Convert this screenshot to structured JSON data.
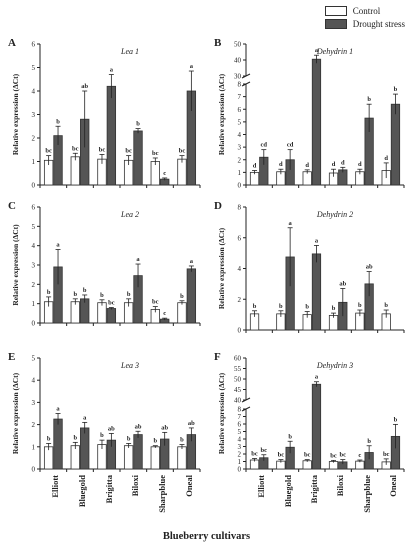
{
  "legend": {
    "control": "Control",
    "drought": "Drought stress"
  },
  "x_axis_title": "Blueberry cultivars",
  "colors": {
    "control": "#ffffff",
    "drought": "#555555",
    "axis": "#222222"
  },
  "chart_data": [
    {
      "panel": "A",
      "type": "bar",
      "title": "Lea 1",
      "ylabel": "Relative expression (ΔCt)",
      "categories": [
        "Elliott",
        "Bluegold",
        "Brigitta",
        "Biloxi",
        "Sharpblue",
        "Oneal"
      ],
      "ylim": [
        0,
        6
      ],
      "yticks": [
        0,
        1,
        2,
        3,
        4,
        5,
        6
      ],
      "series": [
        {
          "name": "Control",
          "values": [
            1.05,
            1.2,
            1.1,
            1.05,
            1.0,
            1.1
          ],
          "errors": [
            0.2,
            0.15,
            0.2,
            0.2,
            0.15,
            0.15
          ],
          "letters": [
            "bc",
            "bc",
            "bc",
            "bc",
            "bc",
            "bc"
          ]
        },
        {
          "name": "Drought stress",
          "values": [
            2.1,
            2.8,
            4.2,
            2.3,
            0.25,
            4.0
          ],
          "errors": [
            0.4,
            1.2,
            0.5,
            0.1,
            0.05,
            0.85
          ],
          "letters": [
            "b",
            "ab",
            "a",
            "b",
            "c",
            "a"
          ]
        }
      ]
    },
    {
      "panel": "B",
      "type": "bar",
      "title": "Dehydrin 1",
      "ylabel": "Relative expression (ΔCt)",
      "categories": [
        "Elliott",
        "Bluegold",
        "Brigitta",
        "Biloxi",
        "Sharpblue",
        "Oneal"
      ],
      "axis_break": true,
      "ylim_lower": [
        0,
        8
      ],
      "yticks_lower": [
        0,
        1,
        2,
        3,
        4,
        5,
        6,
        7,
        8
      ],
      "ylim_upper": [
        30,
        50
      ],
      "yticks_upper": [
        30,
        40,
        50
      ],
      "series": [
        {
          "name": "Control",
          "values": [
            1.0,
            1.05,
            1.05,
            0.95,
            1.05,
            1.15
          ],
          "errors": [
            0.15,
            0.2,
            0.15,
            0.3,
            0.2,
            0.6
          ],
          "letters": [
            "d",
            "d",
            "d",
            "d",
            "d",
            "d"
          ]
        },
        {
          "name": "Drought stress",
          "values": [
            2.2,
            2.0,
            40.5,
            1.2,
            5.3,
            6.4
          ],
          "errors": [
            0.6,
            0.8,
            2.5,
            0.2,
            1.1,
            0.8
          ],
          "letters": [
            "cd",
            "cd",
            "a",
            "d",
            "b",
            "b"
          ]
        }
      ]
    },
    {
      "panel": "C",
      "type": "bar",
      "title": "Lea 2",
      "ylabel": "Relative expression (ΔCt)",
      "categories": [
        "Elliott",
        "Bluegold",
        "Brigitta",
        "Biloxi",
        "Sharpblue",
        "Oneal"
      ],
      "ylim": [
        0,
        6
      ],
      "yticks": [
        0,
        1,
        2,
        3,
        4,
        5,
        6
      ],
      "series": [
        {
          "name": "Control",
          "values": [
            1.1,
            1.1,
            1.05,
            1.05,
            0.7,
            1.05
          ],
          "errors": [
            0.25,
            0.15,
            0.15,
            0.2,
            0.15,
            0.1
          ],
          "letters": [
            "b",
            "b",
            "b",
            "b",
            "bc",
            "b"
          ]
        },
        {
          "name": "Drought stress",
          "values": [
            2.9,
            1.25,
            0.75,
            2.45,
            0.2,
            2.8
          ],
          "errors": [
            0.9,
            0.2,
            0.05,
            0.6,
            0.05,
            0.15
          ],
          "letters": [
            "a",
            "b",
            "bc",
            "a",
            "c",
            "a"
          ]
        }
      ]
    },
    {
      "panel": "D",
      "type": "bar",
      "title": "Dehydrin 2",
      "ylabel": "Relative expression (ΔCt)",
      "categories": [
        "Elliott",
        "Bluegold",
        "Brigitta",
        "Biloxi",
        "Sharpblue",
        "Oneal"
      ],
      "ylim": [
        0,
        8
      ],
      "yticks": [
        0,
        2,
        4,
        6,
        8
      ],
      "series": [
        {
          "name": "Control",
          "values": [
            1.05,
            1.05,
            1.0,
            0.95,
            1.1,
            1.05
          ],
          "errors": [
            0.2,
            0.2,
            0.2,
            0.15,
            0.2,
            0.25
          ],
          "letters": [
            "b",
            "b",
            "b",
            "b",
            "b",
            "b"
          ]
        },
        {
          "name": "Drought stress",
          "values": [
            0,
            4.75,
            4.95,
            1.8,
            3.0,
            0
          ],
          "errors": [
            0,
            1.9,
            0.55,
            0.9,
            0.8,
            0
          ],
          "letters": [
            "",
            "a",
            "a",
            "ab",
            "ab",
            ""
          ]
        }
      ]
    },
    {
      "panel": "E",
      "type": "bar",
      "title": "Lea 3",
      "ylabel": "Relative expression (ΔCt)",
      "categories": [
        "Elliott",
        "Bluegold",
        "Brigitta",
        "Biloxi",
        "Sharpblue",
        "Oneal"
      ],
      "ylim": [
        0,
        5
      ],
      "yticks": [
        0,
        1,
        2,
        3,
        4,
        5
      ],
      "series": [
        {
          "name": "Control",
          "values": [
            1.0,
            1.05,
            1.1,
            1.05,
            1.0,
            1.0
          ],
          "errors": [
            0.15,
            0.15,
            0.2,
            0.1,
            0.05,
            0.1
          ],
          "letters": [
            "b",
            "b",
            "b",
            "b",
            "b",
            "b"
          ]
        },
        {
          "name": "Drought stress",
          "values": [
            2.25,
            1.85,
            1.3,
            1.55,
            1.35,
            1.55
          ],
          "errors": [
            0.25,
            0.25,
            0.3,
            0.15,
            0.3,
            0.3
          ],
          "letters": [
            "a",
            "a",
            "ab",
            "ab",
            "ab",
            "ab"
          ]
        }
      ]
    },
    {
      "panel": "F",
      "type": "bar",
      "title": "Dehydrin 3",
      "ylabel": "Relative expression (ΔCt)",
      "categories": [
        "Elliott",
        "Bluegold",
        "Brigitta",
        "Biloxi",
        "Sharpblue",
        "Oneal"
      ],
      "axis_break": true,
      "ylim_lower": [
        0,
        8
      ],
      "yticks_lower": [
        0,
        1,
        2,
        3,
        4,
        5,
        6,
        7,
        8
      ],
      "ylim_upper": [
        40,
        60
      ],
      "yticks_upper": [
        40,
        45,
        50,
        55,
        60
      ],
      "series": [
        {
          "name": "Control",
          "values": [
            1.2,
            1.05,
            1.1,
            1.0,
            1.05,
            0.95
          ],
          "errors": [
            0.2,
            0.2,
            0.15,
            0.15,
            0.15,
            0.4
          ],
          "letters": [
            "bc",
            "bc",
            "bc",
            "bc",
            "c",
            "bc"
          ]
        },
        {
          "name": "Drought stress",
          "values": [
            1.5,
            2.9,
            47.5,
            0.95,
            2.2,
            4.35
          ],
          "errors": [
            0.4,
            0.8,
            1.2,
            0.3,
            0.9,
            1.6
          ],
          "letters": [
            "bc",
            "b",
            "a",
            "bc",
            "b",
            "b"
          ]
        }
      ]
    }
  ]
}
